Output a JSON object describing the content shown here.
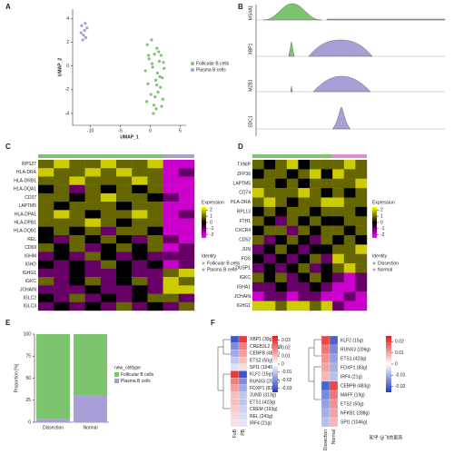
{
  "panels": {
    "A": {
      "label": "A",
      "type": "scatter",
      "xlabel": "UMAP_1",
      "ylabel": "UMAP_2",
      "xlim": [
        -13,
        6
      ],
      "ylim": [
        -5,
        4.8
      ],
      "xticks": [
        -10,
        -5,
        0,
        5
      ],
      "yticks": [
        -4,
        -2,
        0,
        2,
        4
      ],
      "series": [
        {
          "name": "Follicular B cells",
          "color": "#7cc46d",
          "x": [
            -0.5,
            0.2,
            1.1,
            1.8,
            -0.2,
            0.7,
            1.5,
            2.3,
            -0.8,
            0.4,
            1.2,
            2.0,
            -0.4,
            0.9,
            1.7,
            0.1,
            1.3,
            2.1,
            -0.6,
            0.6,
            1.0,
            1.9,
            0.3,
            1.4,
            0.8,
            -0.3,
            1.6,
            0.5,
            2.2,
            1.1
          ],
          "y": [
            1.8,
            2.2,
            1.5,
            0.9,
            0.6,
            1.0,
            0.4,
            -0.2,
            -0.4,
            -0.1,
            -0.6,
            -1.0,
            -1.5,
            -1.2,
            -1.8,
            -2.4,
            -2.2,
            -2.8,
            -3.0,
            -3.3,
            -3.6,
            -3.4,
            0.2,
            1.2,
            -2.6,
            0.9,
            -0.9,
            -4.0,
            0.3,
            -1.6
          ]
        },
        {
          "name": "Plasma B cells",
          "color": "#a99ed6",
          "x": [
            -11.5,
            -11.0,
            -10.6,
            -11.2,
            -10.8,
            -11.6,
            -10.9,
            -11.3
          ],
          "y": [
            3.4,
            3.0,
            3.2,
            2.6,
            2.4,
            2.8,
            3.6,
            2.2
          ]
        }
      ]
    },
    "B": {
      "label": "B",
      "genes": [
        "MS4A1",
        "XBP1",
        "MZB1",
        "SDC1"
      ]
    },
    "C": {
      "label": "C",
      "legend_title": "Expression",
      "identity_title": "Identity",
      "clim": [
        -2.5,
        2.5
      ],
      "cticks": [
        2,
        1,
        0,
        -1,
        -2
      ],
      "genes": [
        "RPS27",
        "HLA-DRA",
        "HLA-DRB1",
        "HLA-DQA1",
        "CD37",
        "LAPTM5",
        "HLA-DPA1",
        "HLA-DPB1",
        "HLA-DQB1",
        "REL",
        "CD69",
        "IGHM",
        "IGHD",
        "IGHG1",
        "IGKC",
        "JCHAIN",
        "IGLC2",
        "IGLC3"
      ],
      "series": [
        {
          "name": "Follicular B cells",
          "color": "#7cc46d",
          "values": [
            [
              1,
              2,
              1,
              1,
              2,
              1,
              1,
              2
            ],
            [
              2,
              1,
              1,
              2,
              1,
              2,
              1,
              1
            ],
            [
              1,
              1,
              2,
              1,
              1,
              1,
              2,
              1
            ],
            [
              0,
              1,
              -1,
              1,
              0,
              1,
              0,
              1
            ],
            [
              1,
              1,
              0,
              1,
              2,
              1,
              1,
              0
            ],
            [
              1,
              0,
              1,
              1,
              1,
              0,
              1,
              1
            ],
            [
              1,
              2,
              1,
              0,
              1,
              1,
              2,
              1
            ],
            [
              1,
              1,
              1,
              2,
              1,
              0,
              1,
              1
            ],
            [
              0,
              1,
              0,
              1,
              -1,
              1,
              1,
              0
            ],
            [
              0,
              -1,
              1,
              0,
              1,
              0,
              -1,
              1
            ],
            [
              1,
              0,
              1,
              -1,
              0,
              1,
              0,
              1
            ],
            [
              -1,
              0,
              -1,
              1,
              0,
              -1,
              0,
              -1
            ],
            [
              0,
              -1,
              0,
              -1,
              1,
              0,
              -1,
              0
            ],
            [
              -1,
              -1,
              0,
              -1,
              -1,
              0,
              -1,
              -1
            ],
            [
              1,
              -1,
              0,
              1,
              -1,
              0,
              1,
              -1
            ],
            [
              -1,
              -1,
              -1,
              0,
              -1,
              -1,
              0,
              -1
            ],
            [
              0,
              -1,
              1,
              -1,
              0,
              -1,
              0,
              1
            ],
            [
              -1,
              0,
              -1,
              0,
              -1,
              1,
              -1,
              0
            ]
          ]
        },
        {
          "name": "Plasma B cells",
          "color": "#a99ed6",
          "values": [
            [
              -2,
              -2
            ],
            [
              -2,
              -1
            ],
            [
              -2,
              -2
            ],
            [
              -2,
              -2
            ],
            [
              -1,
              -2
            ],
            [
              -2,
              -2
            ],
            [
              -2,
              -1
            ],
            [
              -2,
              -2
            ],
            [
              -2,
              -2
            ],
            [
              -1,
              -2
            ],
            [
              -2,
              -1
            ],
            [
              -1,
              -1
            ],
            [
              -2,
              -1
            ],
            [
              1,
              2
            ],
            [
              2,
              1
            ],
            [
              2,
              2
            ],
            [
              1,
              -1
            ],
            [
              -1,
              1
            ]
          ]
        }
      ]
    },
    "D": {
      "label": "D",
      "legend_title": "Expression",
      "identity_title": "Identity",
      "clim": [
        -2.5,
        2.5
      ],
      "cticks": [
        2,
        1,
        0,
        -1,
        -2
      ],
      "genes": [
        "TXNIP",
        "ZFP36",
        "LAPTM5",
        "CD74",
        "HLA-DRA",
        "RPL13",
        "FTH1",
        "CXCR4",
        "CD52",
        "JUN",
        "FOS",
        "DUSP1",
        "IGKC",
        "IGHA1",
        "JCHAIN",
        "IGHG1"
      ],
      "series": [
        {
          "name": "Dissection",
          "color": "#7cc46d",
          "values": [
            [
              1,
              0,
              1,
              2,
              0,
              1,
              1
            ],
            [
              0,
              1,
              1,
              0,
              1,
              2,
              0
            ],
            [
              1,
              1,
              0,
              1,
              0,
              1,
              1
            ],
            [
              2,
              1,
              1,
              1,
              2,
              1,
              0
            ],
            [
              1,
              2,
              1,
              0,
              1,
              1,
              2
            ],
            [
              0,
              1,
              0,
              1,
              1,
              0,
              1
            ],
            [
              1,
              0,
              -1,
              1,
              0,
              1,
              0
            ],
            [
              0,
              1,
              1,
              -1,
              1,
              0,
              1
            ],
            [
              1,
              -1,
              0,
              1,
              0,
              -1,
              1
            ],
            [
              -1,
              0,
              1,
              0,
              -1,
              0,
              0
            ],
            [
              0,
              -1,
              0,
              -1,
              0,
              1,
              -1
            ],
            [
              -1,
              0,
              -1,
              0,
              1,
              -1,
              0
            ],
            [
              1,
              0,
              1,
              -1,
              0,
              1,
              0
            ],
            [
              -1,
              -1,
              0,
              -1,
              -1,
              0,
              -1
            ],
            [
              -2,
              -1,
              -1,
              -2,
              -1,
              -1,
              -2
            ],
            [
              2,
              2,
              1,
              2,
              2,
              1,
              2
            ]
          ]
        },
        {
          "name": "Normal",
          "color": "#d98cd9",
          "values": [
            [
              1,
              2,
              1
            ],
            [
              2,
              1,
              1
            ],
            [
              1,
              1,
              2
            ],
            [
              1,
              0,
              1
            ],
            [
              2,
              1,
              1
            ],
            [
              1,
              1,
              0
            ],
            [
              0,
              1,
              1
            ],
            [
              1,
              0,
              1
            ],
            [
              0,
              1,
              0
            ],
            [
              1,
              1,
              2
            ],
            [
              2,
              1,
              1
            ],
            [
              1,
              2,
              1
            ],
            [
              -1,
              -2,
              -1
            ],
            [
              -2,
              -2,
              -1
            ],
            [
              -2,
              -1,
              -2
            ],
            [
              -1,
              -2,
              -2
            ]
          ]
        }
      ]
    },
    "E": {
      "label": "E",
      "type": "bar",
      "ylabel": "Proportion [%]",
      "legend_title": "new_celltype",
      "categories": [
        "Dissection",
        "Normal"
      ],
      "ylim": [
        0,
        100
      ],
      "yticks": [
        0,
        25,
        50,
        75,
        100
      ],
      "series": [
        {
          "name": "Follicular B cells",
          "color": "#7cc46d",
          "values": [
            96,
            70
          ]
        },
        {
          "name": "Plasma B cells",
          "color": "#a99ed6",
          "values": [
            4,
            30
          ]
        }
      ]
    },
    "F": {
      "label": "F",
      "heatmaps": [
        {
          "columns": [
            "FoB",
            "PB"
          ],
          "clim": [
            -0.035,
            0.035
          ],
          "cticks": [
            0.03,
            0.02,
            0.01,
            0,
            -0.01,
            -0.02,
            -0.03
          ],
          "genes": [
            "XBP1 (30g)",
            "CREB3L2 (20g)",
            "CEBPB (483g)",
            "ETS2 (50g)",
            "SPI1 (1046g)",
            "KLF2 (15g)",
            "RUNX3 (206g)",
            "FOXP1 (83g)",
            "JUND (313g)",
            "ETS1 (423g)",
            "CREM (193g)",
            "REL (243g)",
            "IRF4 (21g)"
          ],
          "values": [
            [
              -0.03,
              0.03
            ],
            [
              -0.02,
              0.02
            ],
            [
              -0.015,
              0.015
            ],
            [
              -0.01,
              0.01
            ],
            [
              -0.005,
              0.005
            ],
            [
              0.03,
              -0.03
            ],
            [
              0.02,
              -0.02
            ],
            [
              0.015,
              -0.015
            ],
            [
              0.01,
              -0.01
            ],
            [
              0.01,
              -0.01
            ],
            [
              0.008,
              -0.008
            ],
            [
              0.006,
              -0.006
            ],
            [
              0.005,
              -0.005
            ]
          ]
        },
        {
          "columns": [
            "Dissection",
            "Normal"
          ],
          "clim": [
            -0.025,
            0.025
          ],
          "cticks": [
            0.02,
            0.01,
            0,
            -0.01,
            -0.02
          ],
          "genes": [
            "KLF2 (15g)",
            "RUNX3 (206g)",
            "ETS1 (423g)",
            "FOXP1 (83g)",
            "IRF4 (21g)",
            "CEBPB (483g)",
            "MAFF (19g)",
            "ETS2 (50g)",
            "NFKB1 (288g)",
            "SPI1 (1046g)"
          ],
          "values": [
            [
              0.02,
              -0.02
            ],
            [
              0.015,
              -0.015
            ],
            [
              0.012,
              -0.012
            ],
            [
              0.01,
              -0.01
            ],
            [
              0.008,
              -0.008
            ],
            [
              -0.02,
              0.02
            ],
            [
              -0.015,
              0.015
            ],
            [
              -0.012,
              0.012
            ],
            [
              -0.01,
              0.01
            ],
            [
              -0.008,
              0.008
            ]
          ]
        }
      ]
    }
  },
  "watermark": "知乎 @飞的更高"
}
